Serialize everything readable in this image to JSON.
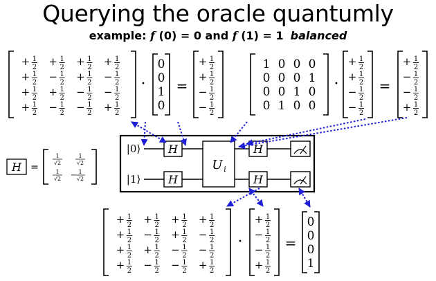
{
  "title": "Querying the oracle quantumly",
  "subtitle": {
    "prefix": "example: ",
    "f0": "f",
    "f0_rest": " (0) = 0 and ",
    "f1": "f",
    "f1_rest": " (1) = 1",
    "classification": "balanced"
  },
  "symbols": {
    "dot": "·",
    "equals": "=",
    "hadamard": "H",
    "oracle": "U",
    "oracle_sub": "i",
    "ket0": "|0⟩",
    "ket1": "|1⟩",
    "half_num": "1",
    "half_den": "2",
    "sqrt2": "√2"
  },
  "matrices": {
    "hadamard_4x4": [
      [
        "+",
        "+",
        "+",
        "+"
      ],
      [
        "+",
        "-",
        "+",
        "-"
      ],
      [
        "+",
        "+",
        "-",
        "-"
      ],
      [
        "+",
        "-",
        "-",
        "+"
      ]
    ],
    "input_vector_1": [
      "0",
      "0",
      "1",
      "0"
    ],
    "result_vector_1": [
      "+",
      "+",
      "-",
      "-"
    ],
    "oracle_matrix": [
      [
        "1",
        "0",
        "0",
        "0"
      ],
      [
        "0",
        "0",
        "0",
        "1"
      ],
      [
        "0",
        "0",
        "1",
        "0"
      ],
      [
        "0",
        "1",
        "0",
        "0"
      ]
    ],
    "oracle_input": [
      "+",
      "+",
      "-",
      "-"
    ],
    "oracle_output": [
      "+",
      "-",
      "-",
      "+"
    ],
    "bottom_input": [
      "+",
      "-",
      "-",
      "+"
    ],
    "bottom_output": [
      "0",
      "0",
      "0",
      "1"
    ],
    "hadamard_2x2": [
      [
        "+",
        "+"
      ],
      [
        "+",
        "-"
      ]
    ]
  },
  "colors": {
    "arrow": "#1f1fd6",
    "ink": "#000000",
    "background": "#ffffff"
  }
}
